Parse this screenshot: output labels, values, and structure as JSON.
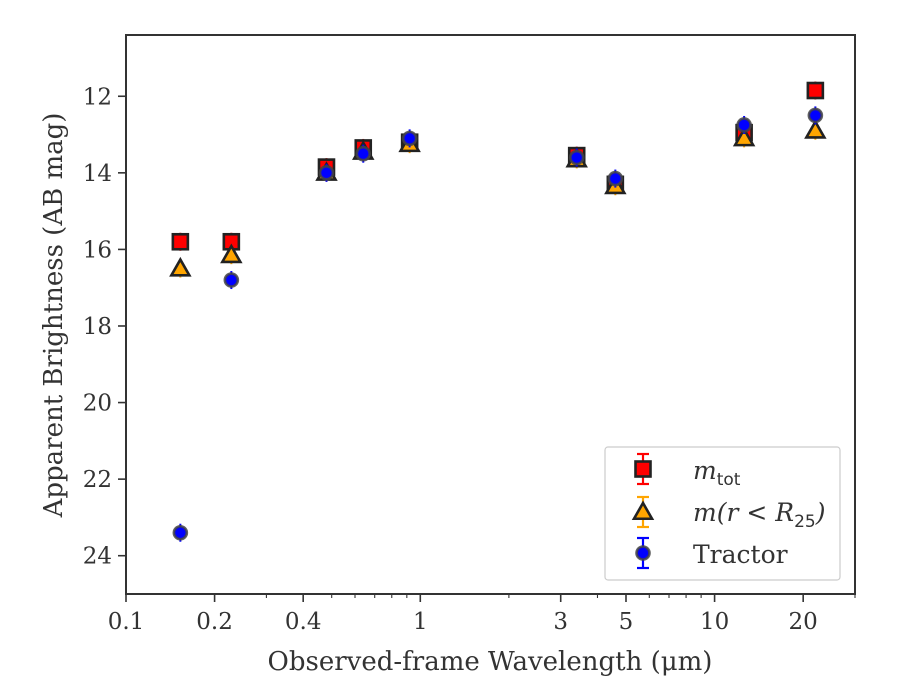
{
  "chart_data": {
    "type": "scatter",
    "xlabel": "Observed-frame Wavelength (μm)",
    "ylabel": "Apparent Brightness (AB mag)",
    "x_scale": "log",
    "xlim": [
      0.1,
      30
    ],
    "ylim": [
      25.0,
      10.4
    ],
    "y_inverted": true,
    "x_ticks": [
      {
        "value": 0.1,
        "label": "0.1"
      },
      {
        "value": 0.2,
        "label": "0.2"
      },
      {
        "value": 0.4,
        "label": "0.4"
      },
      {
        "value": 1,
        "label": "1"
      },
      {
        "value": 3,
        "label": "3"
      },
      {
        "value": 5,
        "label": "5"
      },
      {
        "value": 10,
        "label": "10"
      },
      {
        "value": 20,
        "label": "20"
      }
    ],
    "y_ticks": [
      {
        "value": 12,
        "label": "12"
      },
      {
        "value": 14,
        "label": "14"
      },
      {
        "value": 16,
        "label": "16"
      },
      {
        "value": 18,
        "label": "18"
      },
      {
        "value": 20,
        "label": "20"
      },
      {
        "value": 22,
        "label": "22"
      },
      {
        "value": 24,
        "label": "24"
      }
    ],
    "grid": false,
    "legend_position": "lower-right",
    "series": [
      {
        "name": "m_tot",
        "legend_main": "m",
        "legend_sub": "tot",
        "marker": "square",
        "color": "#ff0000",
        "edge_color": "#222222",
        "points": [
          {
            "x": 0.153,
            "y": 15.8
          },
          {
            "x": 0.228,
            "y": 15.8
          },
          {
            "x": 0.48,
            "y": 13.85
          },
          {
            "x": 0.64,
            "y": 13.35
          },
          {
            "x": 0.92,
            "y": 13.2
          },
          {
            "x": 3.4,
            "y": 13.55
          },
          {
            "x": 4.6,
            "y": 14.3
          },
          {
            "x": 12.6,
            "y": 12.95
          },
          {
            "x": 22.0,
            "y": 11.85
          }
        ]
      },
      {
        "name": "m(r < R_25)",
        "legend_main": "m(r < R",
        "legend_sub": "25",
        "legend_end": ")",
        "marker": "triangle",
        "color": "#ffa500",
        "edge_color": "#222222",
        "points": [
          {
            "x": 0.153,
            "y": 16.5
          },
          {
            "x": 0.228,
            "y": 16.15
          },
          {
            "x": 0.48,
            "y": 14.0
          },
          {
            "x": 0.64,
            "y": 13.45
          },
          {
            "x": 0.92,
            "y": 13.25
          },
          {
            "x": 3.4,
            "y": 13.65
          },
          {
            "x": 4.6,
            "y": 14.35
          },
          {
            "x": 12.6,
            "y": 13.1
          },
          {
            "x": 22.0,
            "y": 12.9
          }
        ]
      },
      {
        "name": "Tractor",
        "legend_main": "Tractor",
        "marker": "circle",
        "color": "#0000ff",
        "edge_color": "#444444",
        "points": [
          {
            "x": 0.153,
            "y": 23.4
          },
          {
            "x": 0.228,
            "y": 16.8
          },
          {
            "x": 0.48,
            "y": 14.0
          },
          {
            "x": 0.64,
            "y": 13.5
          },
          {
            "x": 0.92,
            "y": 13.1
          },
          {
            "x": 3.4,
            "y": 13.6
          },
          {
            "x": 4.6,
            "y": 14.15
          },
          {
            "x": 12.6,
            "y": 12.75
          },
          {
            "x": 22.0,
            "y": 12.5
          }
        ]
      }
    ]
  }
}
